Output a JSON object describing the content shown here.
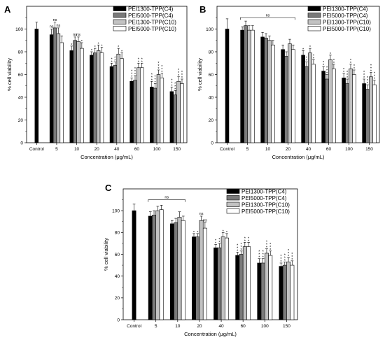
{
  "series_colors": [
    "#000000",
    "#7a7a7a",
    "#c2c2c2",
    "#ffffff"
  ],
  "chart_data": [
    {
      "type": "bar",
      "panel": "A",
      "xlabel": "Concentration (μg/mL)",
      "ylabel": "% cell viability",
      "ylim": [
        0,
        120
      ],
      "yticks": [
        0,
        20,
        40,
        60,
        80,
        100
      ],
      "categories": [
        "Control",
        "5",
        "10",
        "20",
        "40",
        "60",
        "100",
        "150"
      ],
      "legend_position": "top-right",
      "series": [
        {
          "name": "PEI1300-TPP(C4)",
          "values": [
            100,
            95,
            81,
            77,
            67,
            54,
            49,
            45
          ],
          "errors": [
            6,
            5,
            4,
            3,
            3,
            3,
            5,
            4
          ],
          "sig": [
            null,
            "ns",
            "*",
            "*",
            "**",
            "***",
            "***",
            "***"
          ]
        },
        {
          "name": "PEI5000-TPP(C4)",
          "values": [
            null,
            101,
            90,
            79,
            68,
            55,
            48,
            42
          ],
          "errors": [
            null,
            5,
            3,
            4,
            3,
            4,
            4,
            4
          ],
          "sig": [
            null,
            "ns",
            "ns",
            "*",
            "**",
            "***",
            "***",
            "***"
          ]
        },
        {
          "name": "PEI1300-TPP(C10)",
          "values": [
            null,
            96,
            89,
            81,
            78,
            66,
            60,
            54
          ],
          "errors": [
            null,
            5,
            4,
            5,
            5,
            4,
            4,
            4
          ],
          "sig": [
            null,
            "ns",
            "ns",
            "*",
            "*",
            "**",
            "***",
            "***"
          ]
        },
        {
          "name": "PEI5000-TPP(C10)",
          "values": [
            null,
            88,
            83,
            79,
            74,
            66,
            57,
            52
          ],
          "errors": [
            null,
            6,
            5,
            5,
            5,
            4,
            4,
            4
          ],
          "sig": [
            null,
            null,
            "*",
            "*",
            "*",
            "**",
            "***",
            "***"
          ]
        }
      ]
    },
    {
      "type": "bar",
      "panel": "B",
      "xlabel": "Concentration (μg/mL)",
      "ylabel": "% cell viability",
      "ylim": [
        0,
        120
      ],
      "yticks": [
        0,
        20,
        40,
        60,
        80,
        100
      ],
      "categories": [
        "Control",
        "5",
        "10",
        "20",
        "40",
        "60",
        "100",
        "150"
      ],
      "legend_position": "top-right",
      "bracket": {
        "from": "5",
        "to": "20",
        "label": "ns"
      },
      "series": [
        {
          "name": "PEI1300-TPP(C4)",
          "values": [
            100,
            99,
            93,
            82,
            77,
            63,
            57,
            52
          ],
          "errors": [
            9,
            3,
            4,
            4,
            4,
            4,
            4,
            4
          ],
          "sig": [
            null,
            null,
            null,
            null,
            "*",
            "**",
            "**",
            "***"
          ]
        },
        {
          "name": "PEI5000-TPP(C4)",
          "values": [
            null,
            103,
            92,
            76,
            67,
            56,
            52,
            47
          ],
          "errors": [
            null,
            4,
            4,
            4,
            4,
            4,
            4,
            4
          ],
          "sig": [
            null,
            null,
            null,
            null,
            "**",
            "***",
            "***",
            "***"
          ]
        },
        {
          "name": "PEI1300-TPP(C10)",
          "values": [
            null,
            99,
            90,
            87,
            79,
            73,
            65,
            58
          ],
          "errors": [
            null,
            4,
            4,
            4,
            4,
            4,
            4,
            4
          ],
          "sig": [
            null,
            null,
            null,
            null,
            "*",
            "*",
            "**",
            "***"
          ]
        },
        {
          "name": "PEI5000-TPP(C10)",
          "values": [
            null,
            99,
            86,
            82,
            69,
            65,
            60,
            51
          ],
          "errors": [
            null,
            4,
            4,
            4,
            4,
            4,
            4,
            4
          ],
          "sig": [
            null,
            null,
            null,
            null,
            "**",
            "**",
            "**",
            "***"
          ]
        }
      ]
    },
    {
      "type": "bar",
      "panel": "C",
      "xlabel": "Concentration (μg/mL)",
      "ylabel": "% cell viability",
      "ylim": [
        0,
        120
      ],
      "yticks": [
        0,
        20,
        40,
        60,
        80,
        100
      ],
      "categories": [
        "Control",
        "5",
        "10",
        "20",
        "40",
        "60",
        "100",
        "150"
      ],
      "legend_position": "top-right",
      "bracket": {
        "from": "5",
        "to": "10",
        "label": "ns"
      },
      "series": [
        {
          "name": "PEI1300-TPP(C4)",
          "values": [
            100,
            95,
            88,
            76,
            66,
            59,
            52,
            49
          ],
          "errors": [
            6,
            4,
            3,
            3,
            3,
            3,
            4,
            3
          ],
          "sig": [
            null,
            null,
            null,
            "*",
            "**",
            "***",
            "***",
            "***"
          ]
        },
        {
          "name": "PEI5000-TPP(C4)",
          "values": [
            null,
            96,
            89,
            76,
            66,
            60,
            52,
            50
          ],
          "errors": [
            null,
            4,
            4,
            3,
            4,
            3,
            4,
            3
          ],
          "sig": [
            null,
            null,
            null,
            "*",
            "**",
            "***",
            "***",
            "***"
          ]
        },
        {
          "name": "PEI1300-TPP(C10)",
          "values": [
            null,
            100,
            94,
            91,
            76,
            67,
            61,
            53
          ],
          "errors": [
            null,
            4,
            5,
            4,
            4,
            4,
            4,
            4
          ],
          "sig": [
            null,
            null,
            null,
            "ns",
            "*",
            "**",
            "***",
            "***"
          ]
        },
        {
          "name": "PEI5000-TPP(C10)",
          "values": [
            null,
            101,
            91,
            84,
            75,
            67,
            59,
            50
          ],
          "errors": [
            null,
            4,
            4,
            5,
            4,
            4,
            4,
            4
          ],
          "sig": [
            null,
            null,
            null,
            "ns",
            "*",
            "**",
            "***",
            "***"
          ]
        }
      ]
    }
  ]
}
